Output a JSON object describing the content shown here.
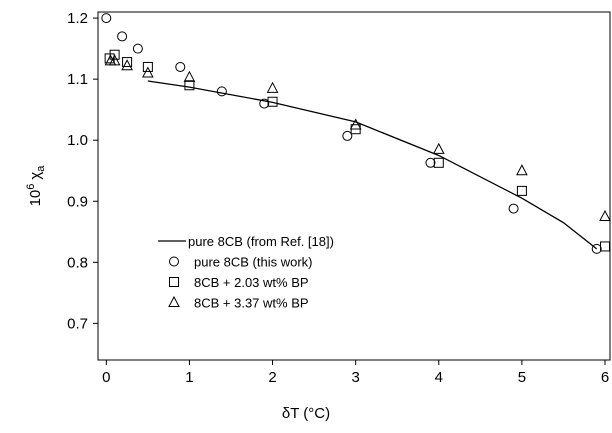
{
  "chart_data": {
    "type": "scatter",
    "xlabel": "δT (°C)",
    "ylabel": {
      "base": "10",
      "exponent": "6",
      "symbol": "χ",
      "subscript": "a"
    },
    "xlim": [
      -0.1,
      6.06
    ],
    "ylim": [
      0.64,
      1.21
    ],
    "xticks": [
      0,
      1,
      2,
      3,
      4,
      5,
      6
    ],
    "yticks": [
      0.7,
      0.8,
      0.9,
      {
        "value": 1,
        "label": "1.0"
      },
      1.1,
      1.2
    ],
    "grid": false,
    "legend": "lower left",
    "series": [
      {
        "name": "pure 8CB (from Ref. [18])",
        "marker": "none",
        "color": "#000000",
        "x": [
          0.5,
          1,
          2,
          3,
          4,
          5,
          5.5,
          5.9
        ],
        "values": [
          1.097,
          1.087,
          1.062,
          1.03,
          0.975,
          0.905,
          0.865,
          0.822
        ]
      },
      {
        "name": "pure 8CB (this work)",
        "marker": "circle",
        "color": "#000000",
        "x": [
          0,
          0.19,
          0.38,
          0.89,
          1.39,
          1.9,
          2.9,
          3.9,
          4.9,
          5.9
        ],
        "values": [
          1.2,
          1.17,
          1.15,
          1.12,
          1.08,
          1.06,
          1.007,
          0.963,
          0.888,
          0.822
        ]
      },
      {
        "name": "8CB + 2.03 wt% BP",
        "marker": "square",
        "color": "#000000",
        "x": [
          0.04,
          0.1,
          0.25,
          0.5,
          1,
          2,
          3,
          4,
          5,
          6
        ],
        "values": [
          1.134,
          1.14,
          1.128,
          1.12,
          1.09,
          1.063,
          1.018,
          0.963,
          0.917,
          0.826
        ]
      },
      {
        "name": "8CB + 3.37 wt% BP",
        "marker": "triangle",
        "color": "#000000",
        "x": [
          0.05,
          0.1,
          0.25,
          0.5,
          1,
          2,
          3,
          4,
          5,
          6
        ],
        "values": [
          1.13,
          1.13,
          1.122,
          1.11,
          1.103,
          1.085,
          1.025,
          0.985,
          0.95,
          0.875
        ]
      }
    ]
  }
}
